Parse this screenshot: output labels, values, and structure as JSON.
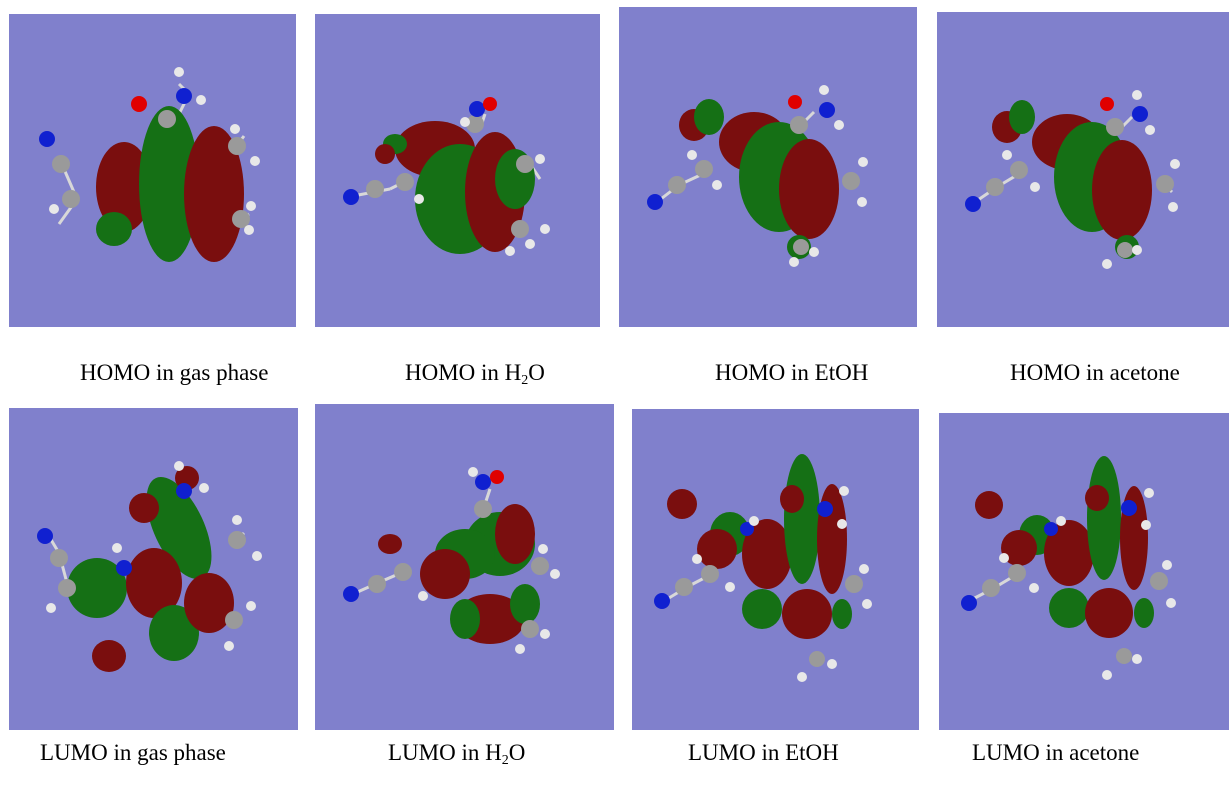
{
  "colors": {
    "background": "#8080cc",
    "lobe_red": "#7a0e0e",
    "lobe_green": "#157015",
    "atom_carbon": "#9a9a9a",
    "atom_hydrogen": "#e8e8e8",
    "atom_nitrogen": "#1020d0",
    "atom_oxygen": "#e00000"
  },
  "panels": [
    {
      "id": "homo-gas",
      "caption_prefix": "HOMO in gas phase",
      "caption_sub": "",
      "caption_suffix": ""
    },
    {
      "id": "homo-h2o",
      "caption_prefix": "HOMO in H",
      "caption_sub": "2",
      "caption_suffix": "O"
    },
    {
      "id": "homo-etoh",
      "caption_prefix": "HOMO in EtOH",
      "caption_sub": "",
      "caption_suffix": ""
    },
    {
      "id": "homo-acetone",
      "caption_prefix": "HOMO in acetone",
      "caption_sub": "",
      "caption_suffix": ""
    },
    {
      "id": "lumo-gas",
      "caption_prefix": "LUMO in gas phase",
      "caption_sub": "",
      "caption_suffix": ""
    },
    {
      "id": "lumo-h2o",
      "caption_prefix": "LUMO in H",
      "caption_sub": "2",
      "caption_suffix": "O"
    },
    {
      "id": "lumo-etoh",
      "caption_prefix": "LUMO in EtOH",
      "caption_sub": "",
      "caption_suffix": ""
    },
    {
      "id": "lumo-acetone",
      "caption_prefix": "LUMO in acetone",
      "caption_sub": "",
      "caption_suffix": ""
    }
  ]
}
